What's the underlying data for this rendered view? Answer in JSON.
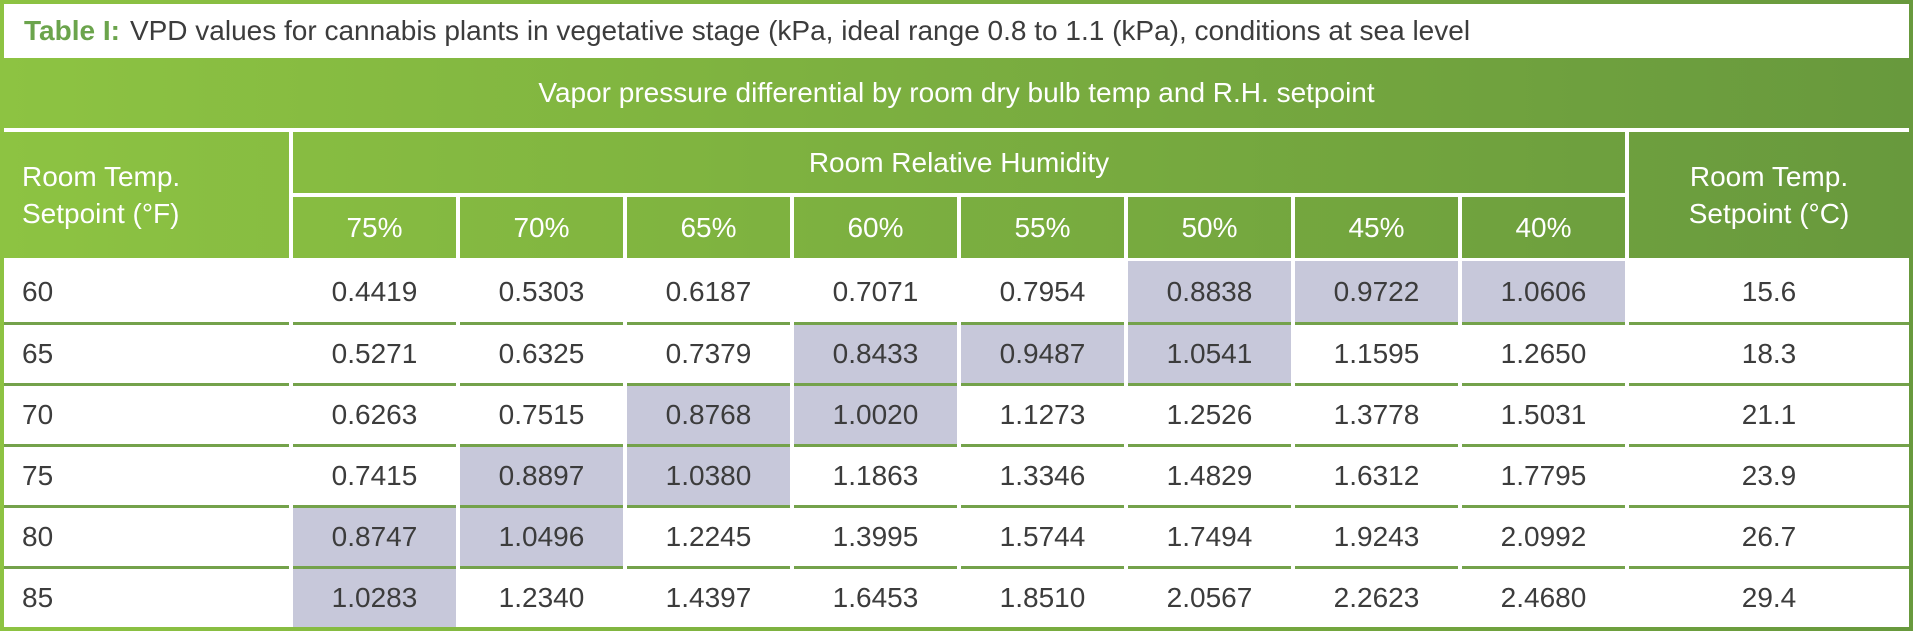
{
  "chart_data": {
    "type": "table",
    "title_label": "Table I:",
    "title": "VPD values for cannabis plants in vegetative stage (kPa, ideal range 0.8 to 1.1 (kPa), conditions at sea level",
    "subtitle": "Vapor pressure differential by room dry bulb temp and R.H. setpoint",
    "col_group_label": "Room Relative Humidity",
    "row_header_f": [
      "Room Temp.",
      "Setpoint (°F)"
    ],
    "row_header_c": [
      "Room Temp.",
      "Setpoint (°C)"
    ],
    "percent_columns": [
      "75%",
      "70%",
      "65%",
      "60%",
      "55%",
      "50%",
      "45%",
      "40%"
    ],
    "rows": [
      {
        "temp_f": "60",
        "values": [
          "0.4419",
          "0.5303",
          "0.6187",
          "0.7071",
          "0.7954",
          "0.8838",
          "0.9722",
          "1.0606"
        ],
        "highlight": [
          5,
          6,
          7
        ],
        "temp_c": "15.6"
      },
      {
        "temp_f": "65",
        "values": [
          "0.5271",
          "0.6325",
          "0.7379",
          "0.8433",
          "0.9487",
          "1.0541",
          "1.1595",
          "1.2650"
        ],
        "highlight": [
          3,
          4,
          5
        ],
        "temp_c": "18.3"
      },
      {
        "temp_f": "70",
        "values": [
          "0.6263",
          "0.7515",
          "0.8768",
          "1.0020",
          "1.1273",
          "1.2526",
          "1.3778",
          "1.5031"
        ],
        "highlight": [
          2,
          3
        ],
        "temp_c": "21.1"
      },
      {
        "temp_f": "75",
        "values": [
          "0.7415",
          "0.8897",
          "1.0380",
          "1.1863",
          "1.3346",
          "1.4829",
          "1.6312",
          "1.7795"
        ],
        "highlight": [
          1,
          2
        ],
        "temp_c": "23.9"
      },
      {
        "temp_f": "80",
        "values": [
          "0.8747",
          "1.0496",
          "1.2245",
          "1.3995",
          "1.5744",
          "1.7494",
          "1.9243",
          "2.0992"
        ],
        "highlight": [
          0,
          1
        ],
        "temp_c": "26.7"
      },
      {
        "temp_f": "85",
        "values": [
          "1.0283",
          "1.2340",
          "1.4397",
          "1.6453",
          "1.8510",
          "2.0567",
          "2.2623",
          "2.4680"
        ],
        "highlight": [
          0
        ],
        "temp_c": "29.4"
      }
    ]
  },
  "colors": {
    "gradient_left": "#8dc342",
    "gradient_right": "#68993d",
    "highlight": "#c7c8da",
    "row_line": "#74a24b",
    "title_accent": "#6ba44c",
    "text_dark": "#3c3c3c"
  }
}
